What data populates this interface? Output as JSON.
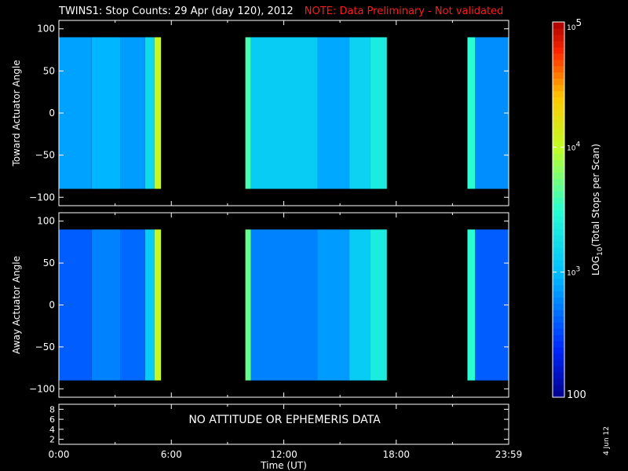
{
  "title": "TWINS1: Stop Counts: 29 Apr (day 120), 2012",
  "warning": "NOTE: Data Preliminary - Not validated",
  "date_stamp": "4 Jun 12",
  "colors": {
    "background": "#000000",
    "axes": "#ffffff",
    "warning": "#ff1a1a"
  },
  "chart_data": [
    {
      "type": "heatmap",
      "panel": "top",
      "ylabel": "Toward Actuator Angle",
      "ylim": [
        -110,
        110
      ],
      "yticks": [
        -100,
        -50,
        0,
        50,
        100
      ],
      "xlim": [
        0,
        24
      ],
      "angle_range": [
        -90,
        90
      ],
      "segments": [
        {
          "x0": 0.0,
          "x1": 1.75,
          "level": 2.88
        },
        {
          "x0": 1.75,
          "x1": 3.3,
          "level": 2.96
        },
        {
          "x0": 3.3,
          "x1": 4.6,
          "level": 2.86
        },
        {
          "x0": 4.6,
          "x1": 5.1,
          "level": 3.2
        },
        {
          "x0": 5.1,
          "x1": 5.45,
          "level": 4.05
        },
        {
          "x0": 9.95,
          "x1": 10.25,
          "level": 3.6
        },
        {
          "x0": 10.25,
          "x1": 13.8,
          "level": 3.1
        },
        {
          "x0": 13.8,
          "x1": 15.5,
          "level": 2.9
        },
        {
          "x0": 15.5,
          "x1": 16.6,
          "level": 3.15
        },
        {
          "x0": 16.6,
          "x1": 17.5,
          "level": 3.35
        },
        {
          "x0": 21.8,
          "x1": 22.2,
          "level": 3.5
        },
        {
          "x0": 22.2,
          "x1": 24.0,
          "level": 2.8
        }
      ]
    },
    {
      "type": "heatmap",
      "panel": "middle",
      "ylabel": "Away Actuator Angle",
      "ylim": [
        -110,
        110
      ],
      "yticks": [
        -100,
        -50,
        0,
        50,
        100
      ],
      "xlim": [
        0,
        24
      ],
      "angle_range": [
        -90,
        90
      ],
      "segments": [
        {
          "x0": 0.0,
          "x1": 1.75,
          "level": 2.6
        },
        {
          "x0": 1.75,
          "x1": 3.3,
          "level": 2.75
        },
        {
          "x0": 3.3,
          "x1": 4.6,
          "level": 2.65
        },
        {
          "x0": 4.6,
          "x1": 5.1,
          "level": 3.1
        },
        {
          "x0": 5.1,
          "x1": 5.45,
          "level": 4.05
        },
        {
          "x0": 9.95,
          "x1": 10.25,
          "level": 3.7
        },
        {
          "x0": 10.25,
          "x1": 13.8,
          "level": 2.75
        },
        {
          "x0": 13.8,
          "x1": 15.5,
          "level": 2.85
        },
        {
          "x0": 15.5,
          "x1": 16.6,
          "level": 3.1
        },
        {
          "x0": 16.6,
          "x1": 17.5,
          "level": 3.35
        },
        {
          "x0": 21.8,
          "x1": 22.2,
          "level": 3.5
        },
        {
          "x0": 22.2,
          "x1": 24.0,
          "level": 2.6
        }
      ]
    },
    {
      "type": "line",
      "panel": "bottom",
      "ylim": [
        1,
        9
      ],
      "yticks": [
        2,
        4,
        6,
        8
      ],
      "xlim": [
        0,
        24
      ],
      "message": "NO ATTITUDE OR EPHEMERIS DATA",
      "xlabel": "Time (UT)",
      "xtick_values": [
        0,
        6,
        12,
        18,
        24
      ],
      "xtick_labels": [
        "0:00",
        "6:00",
        "12:00",
        "18:00",
        "23:59"
      ]
    }
  ],
  "colorbar": {
    "label_prefix": "LOG",
    "label_sub": "10",
    "label_suffix": "(Total Stops per Scan)",
    "range": [
      2,
      5
    ],
    "ticks": [
      {
        "value": 2,
        "label": "100",
        "base": "",
        "exp": ""
      },
      {
        "value": 3,
        "label": "",
        "base": "10",
        "exp": "3"
      },
      {
        "value": 4,
        "label": "",
        "base": "10",
        "exp": "4"
      },
      {
        "value": 5,
        "label": "",
        "base": "10",
        "exp": "5"
      }
    ]
  }
}
